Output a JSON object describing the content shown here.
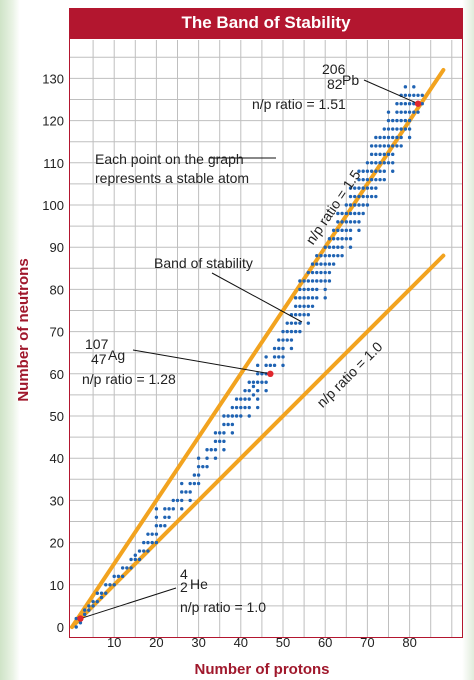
{
  "chart_data": {
    "type": "scatter",
    "title": "The Band of Stability",
    "xlabel": "Number of protons",
    "ylabel": "Number of neutrons",
    "xlim": [
      0,
      90
    ],
    "ylim": [
      0,
      135
    ],
    "xticks": [
      10,
      20,
      30,
      40,
      50,
      60,
      70,
      80
    ],
    "yticks": [
      0,
      10,
      20,
      30,
      40,
      50,
      60,
      70,
      80,
      90,
      100,
      110,
      120,
      130
    ],
    "grid": true,
    "colors": {
      "points": "#1f63b3",
      "highlight": "#e0282e",
      "ratio_lines": "#f2a31f",
      "accent": "#a0182c"
    },
    "ratio_lines": [
      {
        "label": "n/p ratio = 1.5",
        "slope": 1.5
      },
      {
        "label": "n/p ratio = 1.0",
        "slope": 1.0
      }
    ],
    "highlighted_points": [
      {
        "name": "Pb",
        "mass_number": "206",
        "atomic_number": "82",
        "x": 82,
        "y": 124,
        "ratio_label": "n/p ratio = 1.51"
      },
      {
        "name": "Ag",
        "mass_number": "107",
        "atomic_number": "47",
        "x": 47,
        "y": 60,
        "ratio_label": "n/p ratio = 1.28"
      },
      {
        "name": "He",
        "mass_number": "4",
        "atomic_number": "2",
        "x": 2,
        "y": 2,
        "ratio_label": "n/p ratio = 1.0"
      }
    ],
    "annotations": {
      "note_line1": "Each point on the graph",
      "note_line2": "represents a stable atom",
      "band_label": "Band of stability"
    },
    "stable_range": {
      "x": [
        1,
        2,
        3,
        4,
        5,
        6,
        7,
        8,
        9,
        10,
        11,
        12,
        13,
        14,
        15,
        16,
        17,
        18,
        19,
        20,
        21,
        22,
        23,
        24,
        25,
        26,
        27,
        28,
        29,
        30,
        31,
        32,
        33,
        34,
        35,
        36,
        37,
        38,
        39,
        40,
        41,
        42,
        43,
        44,
        45,
        46,
        47,
        48,
        49,
        50,
        51,
        52,
        53,
        54,
        55,
        56,
        57,
        58,
        59,
        60,
        61,
        62,
        63,
        64,
        65,
        66,
        67,
        68,
        69,
        70,
        71,
        72,
        73,
        74,
        75,
        76,
        77,
        78,
        79,
        80,
        81,
        82,
        83
      ],
      "n_min": [
        0,
        1,
        3,
        4,
        5,
        6,
        7,
        8,
        10,
        10,
        12,
        12,
        14,
        14,
        16,
        16,
        18,
        18,
        20,
        20,
        24,
        24,
        26,
        28,
        30,
        28,
        32,
        30,
        34,
        34,
        38,
        38,
        42,
        40,
        44,
        42,
        48,
        46,
        50,
        50,
        52,
        50,
        55,
        52,
        58,
        56,
        60,
        62,
        64,
        62,
        68,
        66,
        70,
        70,
        74,
        72,
        76,
        78,
        82,
        78,
        82,
        86,
        88,
        88,
        92,
        90,
        96,
        94,
        98,
        100,
        102,
        102,
        106,
        106,
        110,
        108,
        114,
        114,
        118,
        116,
        122,
        122,
        124
      ],
      "n_max": [
        2,
        2,
        4,
        5,
        6,
        8,
        8,
        10,
        10,
        12,
        12,
        14,
        14,
        16,
        17,
        18,
        20,
        22,
        22,
        28,
        24,
        28,
        28,
        30,
        30,
        34,
        32,
        34,
        36,
        40,
        38,
        42,
        42,
        46,
        46,
        50,
        50,
        52,
        54,
        54,
        56,
        58,
        58,
        62,
        60,
        64,
        62,
        66,
        68,
        70,
        72,
        74,
        78,
        82,
        82,
        84,
        86,
        88,
        88,
        90,
        92,
        94,
        98,
        98,
        100,
        104,
        104,
        108,
        108,
        110,
        114,
        116,
        116,
        118,
        122,
        120,
        124,
        126,
        128,
        126,
        128,
        126,
        126
      ]
    }
  }
}
